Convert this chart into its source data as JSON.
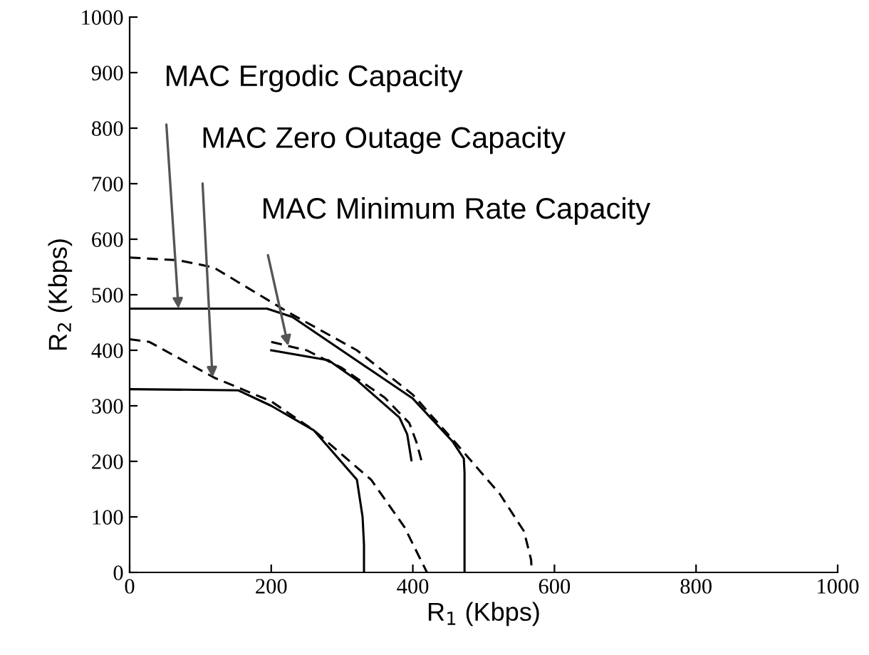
{
  "chart_data": {
    "type": "line",
    "xlabel": "R$_{1}$ (Kbps)",
    "ylabel": "R$_{2}$ (Kbps)",
    "xlim": [
      0,
      1000
    ],
    "ylim": [
      0,
      1000
    ],
    "xticks": [
      0,
      200,
      400,
      600,
      800,
      1000
    ],
    "yticks": [
      0,
      100,
      200,
      300,
      400,
      500,
      600,
      700,
      800,
      900,
      1000
    ],
    "grid": false,
    "marker": "none",
    "series": [
      {
        "color": "#000000",
        "line_style": "dashed",
        "x": [
          0,
          70,
          119,
          226,
          321,
          400,
          462,
          523,
          557,
          567,
          568
        ],
        "values": [
          567,
          562,
          549,
          467,
          400,
          320,
          231,
          141,
          74,
          23,
          0
        ]
      },
      {
        "color": "#000000",
        "line_style": "solid",
        "x": [
          0,
          194,
          230,
          341,
          400,
          456,
          472,
          473,
          473
        ],
        "values": [
          475,
          475,
          460,
          364,
          313,
          236,
          205,
          180,
          0
        ]
      },
      {
        "color": "#000000",
        "line_style": "dashed",
        "x": [
          0,
          28,
          119,
          200,
          260,
          341,
          388,
          418,
          420
        ],
        "values": [
          420,
          415,
          351,
          308,
          256,
          167,
          82,
          5,
          0
        ]
      },
      {
        "color": "#000000",
        "line_style": "solid",
        "x": [
          0,
          153,
          200,
          260,
          321,
          329,
          331,
          331
        ],
        "values": [
          330,
          328,
          300,
          256,
          167,
          100,
          50,
          0
        ]
      },
      {
        "color": "#000000",
        "line_style": "dashed",
        "x": [
          200,
          250,
          300,
          360,
          395,
          405,
          412
        ],
        "values": [
          415,
          400,
          368,
          315,
          269,
          235,
          202
        ]
      },
      {
        "color": "#000000",
        "line_style": "solid",
        "x": [
          200,
          281,
          321,
          381,
          392,
          398
        ],
        "values": [
          400,
          382,
          346,
          279,
          249,
          202
        ]
      }
    ],
    "annotations": [
      {
        "text": "MAC Ergodic Capacity",
        "x": 69,
        "y": 475
      },
      {
        "text": "MAC Zero Outage Capacity",
        "x": 117,
        "y": 351
      },
      {
        "text": "MAC Minimum Rate Capacity",
        "x": 224,
        "y": 408
      }
    ]
  }
}
